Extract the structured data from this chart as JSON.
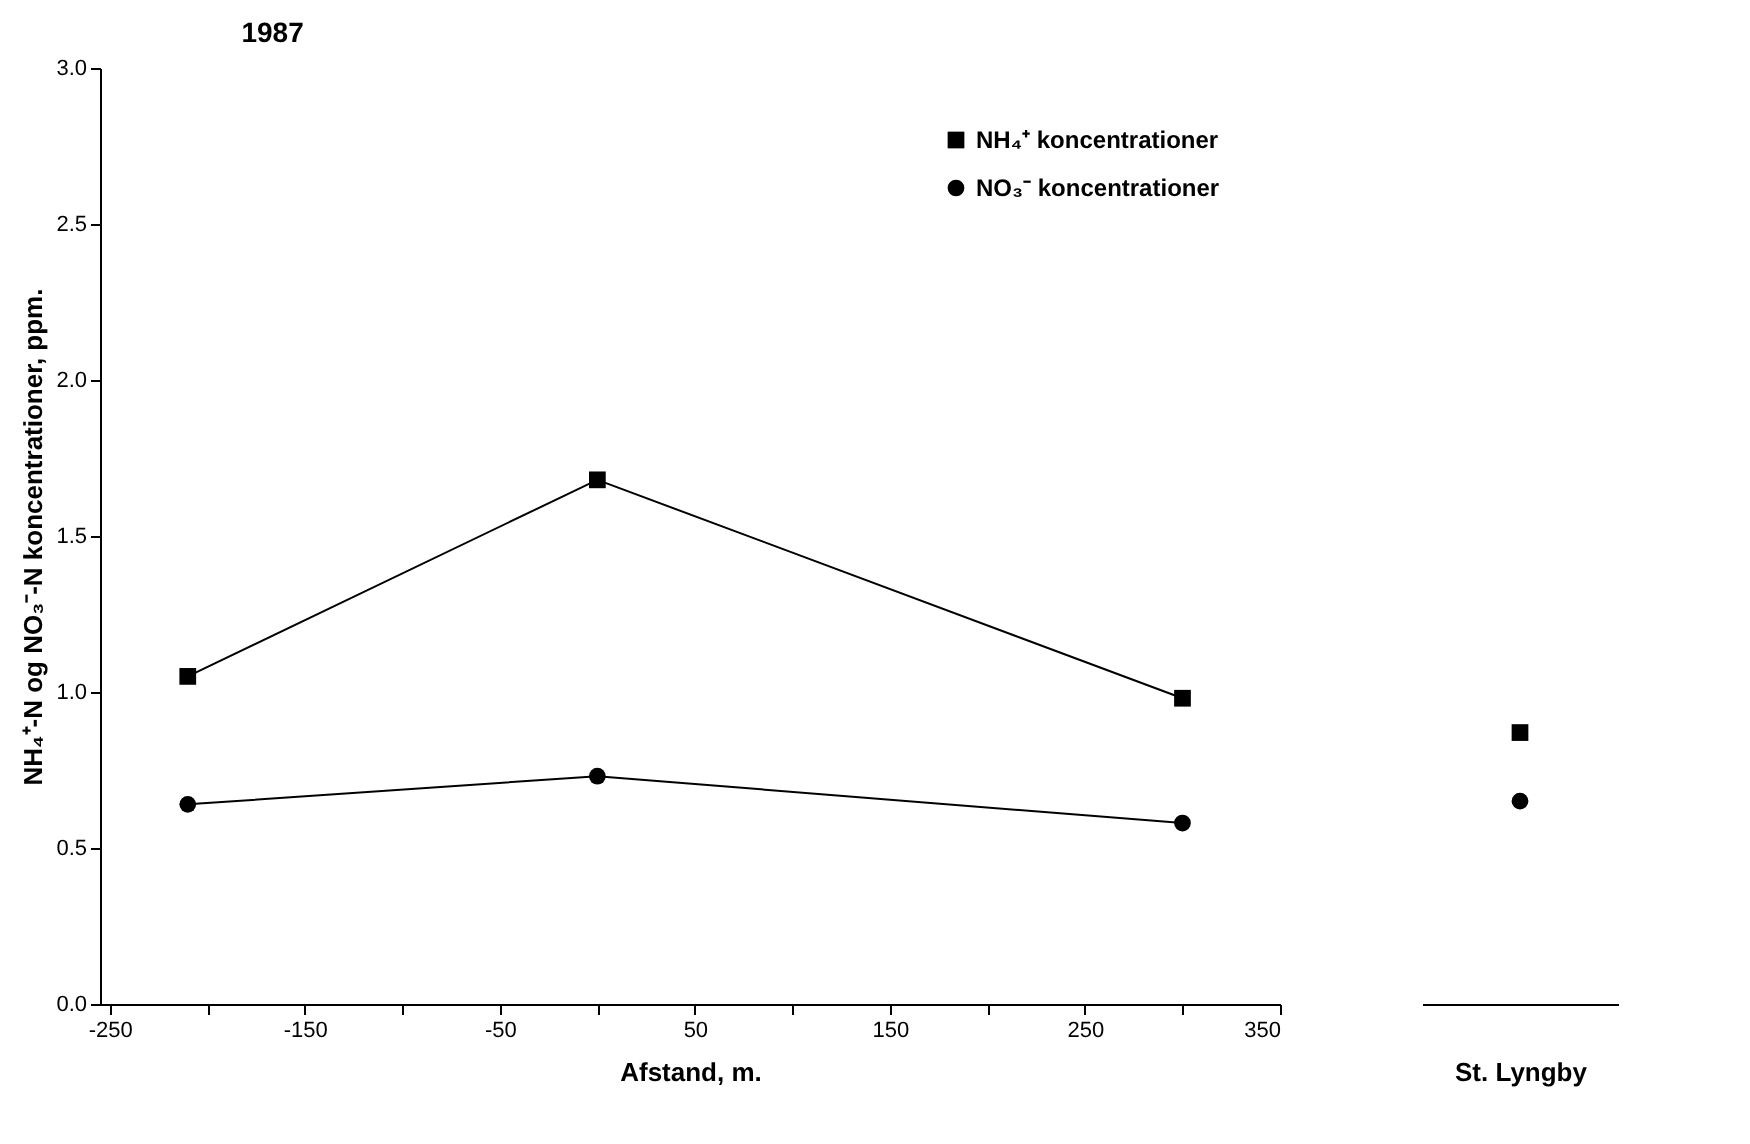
{
  "chart_data": [
    {
      "type": "line",
      "title": "1987",
      "xlabel": "Afstand, m.",
      "ylabel": "NH₄⁺-N og NO₃⁻-N koncentrationer, ppm.",
      "x": [
        -210,
        0,
        300
      ],
      "series": [
        {
          "name": "NH₄⁺ koncentrationer",
          "color": "#000000",
          "marker": "square",
          "values": [
            1.05,
            1.68,
            0.98
          ]
        },
        {
          "name": "NO₃⁻ koncentrationer",
          "color": "#000000",
          "marker": "circle",
          "values": [
            0.64,
            0.73,
            0.58
          ]
        }
      ],
      "xlim": [
        -255,
        350
      ],
      "xticks": [
        -250,
        {
          "value": -200,
          "label": null
        },
        -150,
        {
          "value": -100,
          "label": null
        },
        -50,
        {
          "value": 0,
          "label": null
        },
        50,
        {
          "value": 100,
          "label": null
        },
        150,
        {
          "value": 200,
          "label": null
        },
        250,
        {
          "value": 300,
          "label": null
        },
        350
      ],
      "ylim": [
        0,
        3
      ],
      "yticks": [
        {
          "value": 0,
          "label": "0.0"
        },
        {
          "value": 0.5,
          "label": "0.5"
        },
        {
          "value": 1,
          "label": "1.0"
        },
        {
          "value": 1.5,
          "label": "1.5"
        },
        {
          "value": 2,
          "label": "2.0"
        },
        {
          "value": 2.5,
          "label": "2.5"
        },
        {
          "value": 3,
          "label": "3.0"
        }
      ],
      "legend": "top right",
      "line_style": "solid"
    },
    {
      "type": "scatter",
      "categories": [
        "St. Lyngby"
      ],
      "series": [
        {
          "color": "#000000",
          "marker": "square",
          "values": [
            0.87
          ]
        },
        {
          "color": "#000000",
          "marker": "circle",
          "values": [
            0.65
          ]
        }
      ],
      "ylim": [
        0,
        3
      ],
      "tick_labels": "x"
    }
  ]
}
